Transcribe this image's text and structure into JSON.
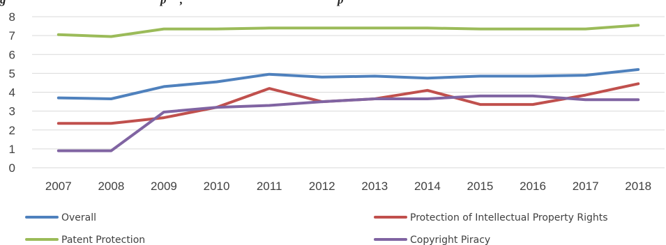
{
  "chart_data": {
    "type": "line",
    "title": "",
    "xlabel": "",
    "ylabel": "",
    "categories": [
      "2007",
      "2008",
      "2009",
      "2010",
      "2011",
      "2012",
      "2013",
      "2014",
      "2015",
      "2016",
      "2017",
      "2018"
    ],
    "y_ticks": [
      "0",
      "1",
      "2",
      "3",
      "4",
      "5",
      "6",
      "7",
      "8"
    ],
    "ylim": [
      0,
      8
    ],
    "grid": true,
    "legend_position": "bottom",
    "series": [
      {
        "name": "Overall",
        "color": "#4f81bd",
        "values": [
          3.7,
          3.65,
          4.3,
          4.55,
          4.95,
          4.8,
          4.85,
          4.75,
          4.85,
          4.85,
          4.9,
          5.2
        ]
      },
      {
        "name": "Protection of Intellectual Property Rights",
        "color": "#c0504d",
        "values": [
          2.35,
          2.35,
          2.65,
          3.2,
          4.2,
          3.5,
          3.65,
          4.1,
          3.35,
          3.35,
          3.85,
          4.45
        ]
      },
      {
        "name": "Patent Protection",
        "color": "#9bbb59",
        "values": [
          7.05,
          6.95,
          7.35,
          7.35,
          7.4,
          7.4,
          7.4,
          7.4,
          7.35,
          7.35,
          7.35,
          7.55
        ]
      },
      {
        "name": "Copyright Piracy",
        "color": "#8064a2",
        "values": [
          0.9,
          0.9,
          2.95,
          3.2,
          3.3,
          3.5,
          3.65,
          3.65,
          3.8,
          3.8,
          3.6,
          3.6
        ]
      }
    ]
  }
}
